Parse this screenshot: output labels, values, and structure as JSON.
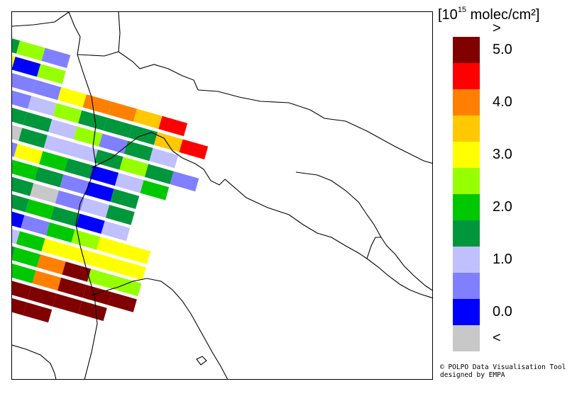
{
  "legend": {
    "title_prefix": "[10",
    "title_exponent": "15",
    "title_unit": " molec/cm²]",
    "classes": [
      {
        "label": "<",
        "color": "#c8c8c8"
      },
      {
        "label": "0.0",
        "color": "#0000ff"
      },
      {
        "label": "",
        "color": "#8080ff"
      },
      {
        "label": "1.0",
        "color": "#c0c0ff"
      },
      {
        "label": "",
        "color": "#00963c"
      },
      {
        "label": "2.0",
        "color": "#00c800"
      },
      {
        "label": "",
        "color": "#96ff00"
      },
      {
        "label": "3.0",
        "color": "#ffff00"
      },
      {
        "label": "",
        "color": "#ffc800"
      },
      {
        "label": "4.0",
        "color": "#ff8000"
      },
      {
        "label": "",
        "color": "#ff0000"
      },
      {
        "label": "5.0",
        "color": "#800000"
      },
      {
        "label": ">",
        "color": "#800000"
      }
    ]
  },
  "credit": {
    "line1": "© POLPO Data Visualisation Tool",
    "line2": "designed by EMPA"
  },
  "swath_rows": [
    [
      2,
      4,
      6,
      2,
      -1
    ],
    [
      2,
      7,
      1,
      6,
      -1,
      -1
    ],
    [
      4,
      4,
      2,
      2,
      7,
      9,
      9,
      8,
      10
    ],
    [
      2,
      3,
      2,
      3,
      6,
      4,
      4,
      4,
      8,
      10
    ],
    [
      3,
      1,
      4,
      4,
      3,
      6,
      2,
      4,
      3
    ],
    [
      2,
      2,
      0,
      4,
      3,
      3,
      4,
      6,
      4,
      2
    ],
    [
      1,
      0,
      2,
      7,
      5,
      4,
      1,
      3,
      5
    ],
    [
      2,
      1,
      2,
      5,
      4,
      2,
      1,
      4
    ],
    [
      3,
      3,
      3,
      4,
      0,
      2,
      3,
      4
    ],
    [
      2,
      2,
      0,
      4,
      5,
      4,
      1,
      3
    ],
    [
      3,
      2,
      2,
      1,
      2,
      5,
      6,
      7,
      7
    ],
    [
      2,
      3,
      1,
      3,
      5,
      7,
      7,
      7,
      7
    ],
    [
      3,
      2,
      2,
      4,
      5,
      9,
      12,
      6,
      6
    ],
    [
      2,
      3,
      0,
      7,
      5,
      9,
      12,
      12,
      12
    ],
    [
      2,
      6,
      3,
      8,
      12,
      12,
      12,
      12
    ],
    [
      5,
      10,
      6,
      12,
      12,
      12
    ],
    [
      4,
      6,
      4
    ]
  ]
}
